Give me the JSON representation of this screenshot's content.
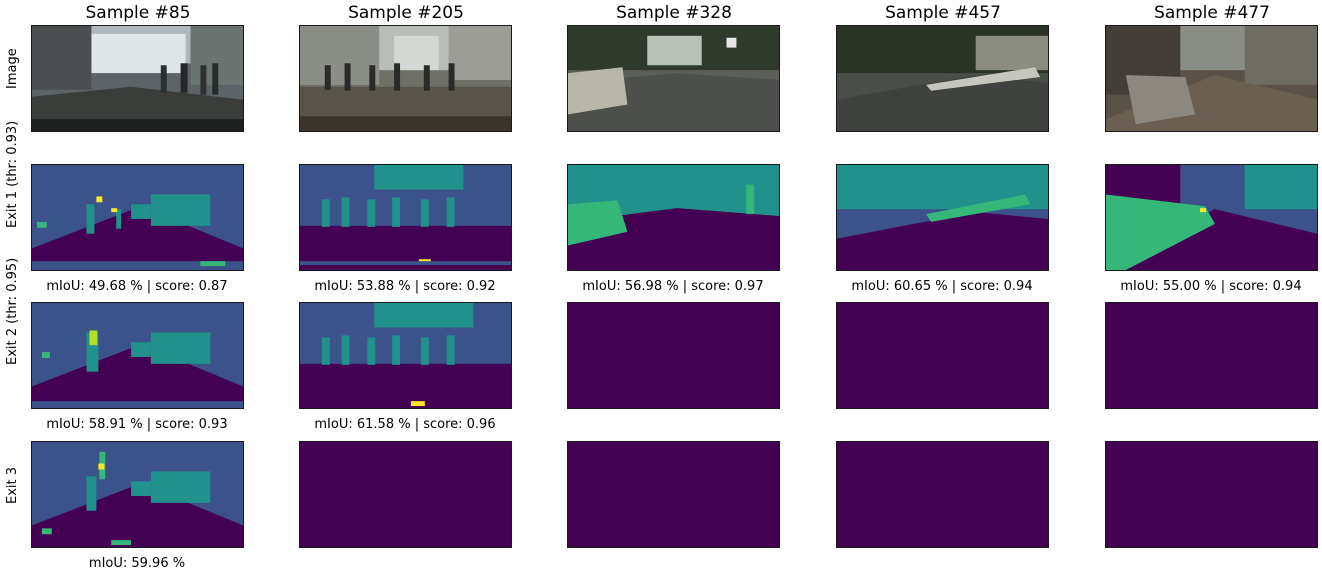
{
  "columns": [
    {
      "title": "Sample #85"
    },
    {
      "title": "Sample #205"
    },
    {
      "title": "Sample #328"
    },
    {
      "title": "Sample #457"
    },
    {
      "title": "Sample #477"
    }
  ],
  "rows": [
    {
      "label": "Image"
    },
    {
      "label": "Exit 1 (thr: 0.93)"
    },
    {
      "label": "Exit 2 (thr: 0.95)"
    },
    {
      "label": "Exit 3"
    }
  ],
  "captions": {
    "exit1": [
      "mIoU: 49.68 % | score: 0.87",
      "mIoU: 53.88 % | score: 0.92",
      "mIoU: 56.98 % | score: 0.97",
      "mIoU: 60.65 % | score: 0.94",
      "mIoU: 55.00 % | score: 0.94"
    ],
    "exit2": [
      "mIoU: 58.91 % | score: 0.93",
      "mIoU: 61.58 % | score: 0.96"
    ],
    "exit3": [
      "mIoU: 59.96 %"
    ]
  },
  "colors": {
    "background_class": "#440154",
    "road_class": "#46085c",
    "blue_class": "#3b528b",
    "teal_class": "#21918c",
    "green_class": "#35b779",
    "yellow_class": "#fde725"
  }
}
